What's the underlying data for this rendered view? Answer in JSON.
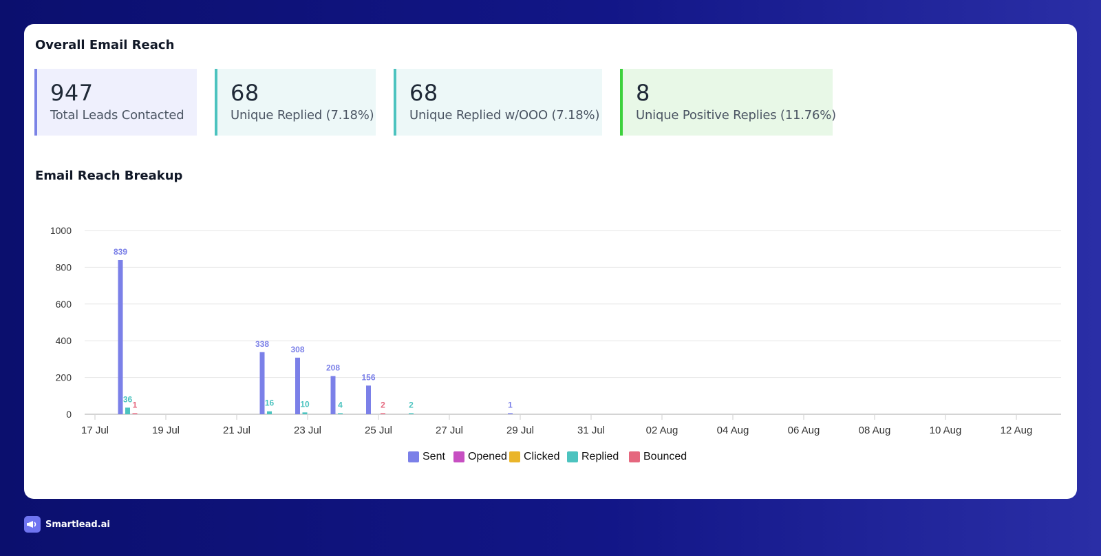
{
  "overall": {
    "title": "Overall Email Reach",
    "stats": [
      {
        "value": "947",
        "label": "Total Leads Contacted",
        "accent": "#7b83e6",
        "bg": "#eff0fd"
      },
      {
        "value": "68",
        "label": "Unique Replied (7.18%)",
        "accent": "#4cc3bf",
        "bg": "#edf8f8"
      },
      {
        "value": "68",
        "label": "Unique Replied w/OOO (7.18%)",
        "accent": "#4cc3bf",
        "bg": "#edf8f8"
      },
      {
        "value": "8",
        "label": "Unique Positive Replies (11.76%)",
        "accent": "#3cd13c",
        "bg": "#e8f8e7"
      }
    ]
  },
  "breakup": {
    "title": "Email Reach Breakup"
  },
  "chart_data": {
    "type": "bar",
    "x_type": "date",
    "ylim": [
      0,
      1000
    ],
    "yticks": [
      "0",
      "200",
      "400",
      "600",
      "800",
      "1000"
    ],
    "xticks": [
      "17 Jul",
      "19 Jul",
      "21 Jul",
      "23 Jul",
      "25 Jul",
      "27 Jul",
      "29 Jul",
      "31 Jul",
      "02 Aug",
      "04 Aug",
      "06 Aug",
      "08 Aug",
      "10 Aug",
      "12 Aug"
    ],
    "grid": true,
    "legend_position": "bottom",
    "categories": [
      "17 Jul",
      "18 Jul",
      "19 Jul",
      "20 Jul",
      "21 Jul",
      "22 Jul",
      "23 Jul",
      "24 Jul",
      "25 Jul",
      "26 Jul",
      "27 Jul",
      "28 Jul"
    ],
    "series": [
      {
        "name": "Sent",
        "color": "#7b80e8",
        "values": [
          839,
          0,
          0,
          0,
          338,
          308,
          208,
          156,
          0,
          0,
          0,
          1
        ]
      },
      {
        "name": "Opened",
        "color": "#c74fc2",
        "values": [
          0,
          0,
          0,
          0,
          0,
          0,
          0,
          0,
          0,
          0,
          0,
          0
        ]
      },
      {
        "name": "Clicked",
        "color": "#eab52a",
        "values": [
          0,
          0,
          0,
          0,
          0,
          0,
          0,
          0,
          0,
          0,
          0,
          0
        ]
      },
      {
        "name": "Replied",
        "color": "#4cc3bf",
        "values": [
          36,
          0,
          0,
          0,
          16,
          10,
          4,
          0,
          2,
          0,
          0,
          0
        ]
      },
      {
        "name": "Bounced",
        "color": "#e5677e",
        "values": [
          1,
          0,
          0,
          0,
          0,
          0,
          0,
          2,
          0,
          0,
          0,
          0
        ]
      }
    ]
  },
  "footer": {
    "brand": "Smartlead.ai"
  }
}
